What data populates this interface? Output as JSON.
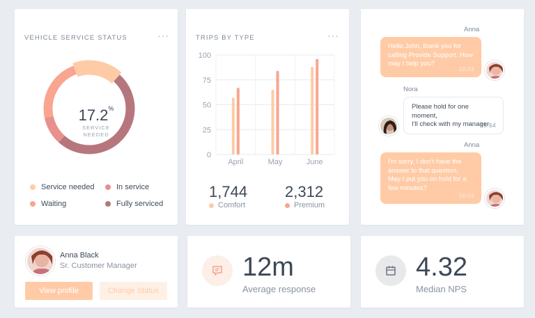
{
  "service_status": {
    "title": "VEHICLE SERVICE STATUS",
    "menu": "···",
    "center_value": "17.2",
    "center_unit": "%",
    "center_label_1": "SERVICE",
    "center_label_2": "NEEDED",
    "legend": [
      {
        "label": "Service needed",
        "color": "#ffcba6"
      },
      {
        "label": "In service",
        "color": "#e8908e"
      },
      {
        "label": "Waiting",
        "color": "#f9a58f"
      },
      {
        "label": "Fully serviced",
        "color": "#b5777d"
      }
    ],
    "segments": [
      {
        "name": "Service needed",
        "percent": 17.2,
        "color": "#ffcba6"
      },
      {
        "name": "Fully serviced",
        "percent": 50.0,
        "color": "#b5777d"
      },
      {
        "name": "In service",
        "percent": 10.0,
        "color": "#e8908e"
      },
      {
        "name": "Waiting",
        "percent": 22.8,
        "color": "#f9a58f"
      }
    ]
  },
  "trips": {
    "title": "TRIPS BY TYPE",
    "menu": "···",
    "stats": [
      {
        "value": "1,744",
        "label": "Comfort",
        "color": "#ffcba6"
      },
      {
        "value": "2,312",
        "label": "Premium",
        "color": "#f9a58f"
      }
    ]
  },
  "chart_data": {
    "type": "bar",
    "title": "TRIPS BY TYPE",
    "categories": [
      "April",
      "May",
      "June"
    ],
    "series": [
      {
        "name": "Comfort",
        "color": "#ffcba6",
        "values": [
          57,
          65,
          88
        ]
      },
      {
        "name": "Premium",
        "color": "#f9a58f",
        "values": [
          67,
          84,
          96
        ]
      }
    ],
    "ylim": [
      0,
      100
    ],
    "yticks": [
      0,
      25,
      50,
      75,
      100
    ],
    "grid": true
  },
  "chat": {
    "messages": [
      {
        "author": "Anna",
        "text_lines": [
          "Hello John, thank you for",
          "calling Provide Support. How",
          "may I help you?"
        ],
        "time": "18:54",
        "side": "in"
      },
      {
        "author": "Nora",
        "text_lines": [
          "Please hold for one moment,",
          "I'll check with my manager."
        ],
        "time": "18:54",
        "side": "out"
      },
      {
        "author": "Anna",
        "text_lines": [
          "I'm sorry, I don't have the",
          "answer to that question.",
          "May I put you on hold for a",
          "few minutes?"
        ],
        "time": "18:54",
        "side": "in"
      }
    ]
  },
  "profile": {
    "name": "Anna Black",
    "role": "Sr. Customer Manager",
    "view_button": "View profile",
    "status_button": "Change Status"
  },
  "kpis": [
    {
      "value": "12m",
      "label": "Average response",
      "icon": "chat-bubble-icon",
      "bg": "#fdeee8",
      "fg": "#f4a28c"
    },
    {
      "value": "4.32",
      "label": "Median NPS",
      "icon": "calendar-icon",
      "bg": "#e8e9eb",
      "fg": "#6b7380"
    }
  ]
}
